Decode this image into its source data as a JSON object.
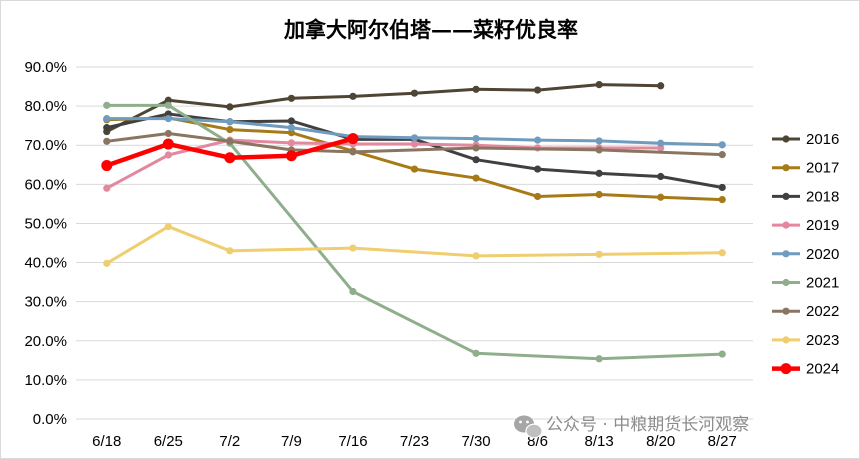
{
  "chart_data": {
    "type": "line",
    "title": "加拿大阿尔伯塔——菜籽优良率",
    "xlabel": "",
    "ylabel": "",
    "categories": [
      "6/18",
      "6/25",
      "7/2",
      "7/9",
      "7/16",
      "7/23",
      "7/30",
      "8/6",
      "8/13",
      "8/20",
      "8/27"
    ],
    "ylim": [
      0,
      90
    ],
    "yticks": [
      "0.0%",
      "10.0%",
      "20.0%",
      "30.0%",
      "40.0%",
      "50.0%",
      "60.0%",
      "70.0%",
      "80.0%",
      "90.0%"
    ],
    "grid": "horizontal",
    "legend_position": "right",
    "series": [
      {
        "name": "2016",
        "color": "#4e4535",
        "width": 3,
        "values": [
          73.5,
          81.5,
          79.8,
          82.0,
          82.5,
          83.3,
          84.3,
          84.1,
          85.5,
          85.2,
          null
        ]
      },
      {
        "name": "2017",
        "color": "#a77a18",
        "width": 3,
        "values": [
          76.5,
          77.0,
          74.0,
          73.2,
          68.5,
          63.9,
          61.6,
          56.9,
          57.4,
          56.7,
          56.1
        ]
      },
      {
        "name": "2018",
        "color": "#404040",
        "width": 3,
        "values": [
          74.5,
          78.0,
          76.0,
          76.2,
          71.5,
          71.5,
          66.3,
          63.9,
          62.8,
          62.0,
          59.2
        ]
      },
      {
        "name": "2019",
        "color": "#e2889f",
        "width": 3,
        "values": [
          59.0,
          67.5,
          71.3,
          70.6,
          70.3,
          70.3,
          70.0,
          69.3,
          69.3,
          69.3,
          null
        ]
      },
      {
        "name": "2020",
        "color": "#6f9bbf",
        "width": 3,
        "values": [
          76.8,
          76.8,
          76.0,
          74.5,
          72.2,
          71.9,
          71.7,
          71.3,
          71.1,
          70.5,
          70.1
        ]
      },
      {
        "name": "2021",
        "color": "#8fae8b",
        "width": 3,
        "values": [
          80.2,
          80.2,
          70.5,
          null,
          32.6,
          null,
          16.8,
          null,
          15.4,
          null,
          16.6
        ]
      },
      {
        "name": "2022",
        "color": "#8a7560",
        "width": 3,
        "values": [
          71.0,
          73.0,
          71.0,
          68.8,
          68.3,
          null,
          69.3,
          null,
          68.8,
          null,
          67.6
        ]
      },
      {
        "name": "2023",
        "color": "#f0cd6e",
        "width": 3,
        "values": [
          39.8,
          49.2,
          43.0,
          null,
          43.7,
          null,
          41.7,
          null,
          42.1,
          null,
          42.5
        ]
      },
      {
        "name": "2024",
        "color": "#ff0000",
        "width": 4.5,
        "values": [
          64.8,
          70.3,
          66.8,
          67.3,
          71.7,
          null,
          null,
          null,
          null,
          null,
          null
        ]
      }
    ]
  },
  "watermark": {
    "text": "公众号 · 中粮期货长河观察",
    "icon": "wechat-icon"
  }
}
